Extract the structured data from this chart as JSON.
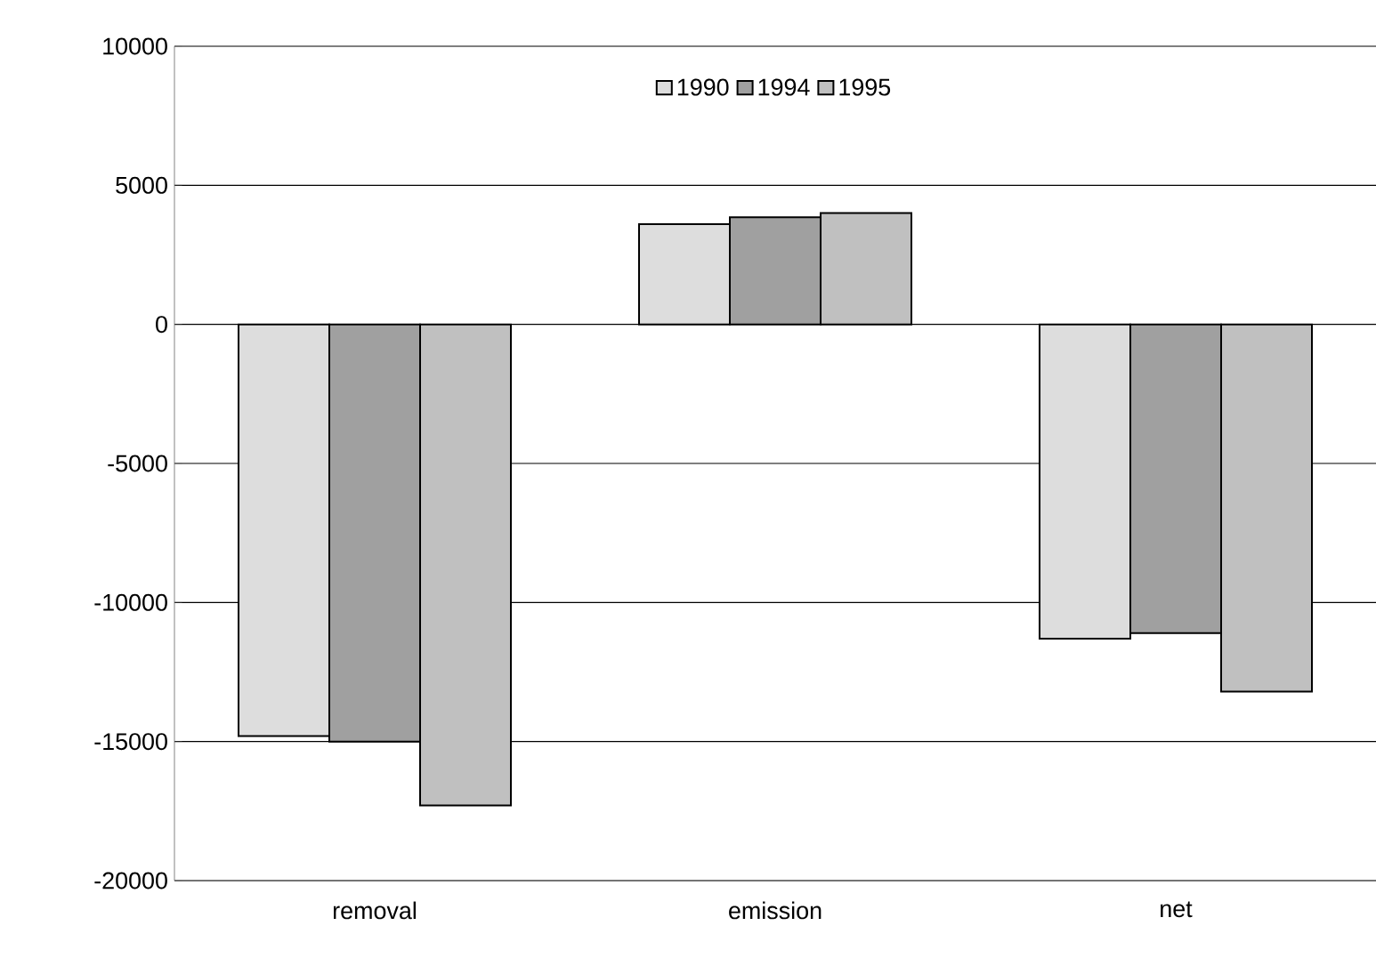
{
  "chart_data": {
    "type": "bar",
    "categories": [
      "removal",
      "emission",
      "net"
    ],
    "series": [
      {
        "name": "1990",
        "color": "#dddddd",
        "values": [
          -14800,
          3600,
          -11300
        ]
      },
      {
        "name": "1994",
        "color": "#a0a0a0",
        "values": [
          -15000,
          3850,
          -11100
        ]
      },
      {
        "name": "1995",
        "color": "#c0c0c0",
        "values": [
          -17300,
          4000,
          -13200
        ]
      }
    ],
    "ylim": [
      -20000,
      10000
    ],
    "yticks": [
      -20000,
      -15000,
      -10000,
      -5000,
      0,
      5000,
      10000
    ],
    "grid": "y",
    "legend": "top"
  }
}
